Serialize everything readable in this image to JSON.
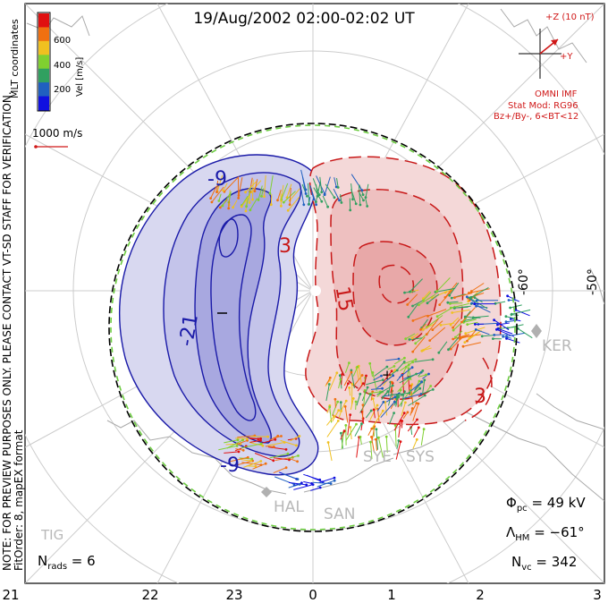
{
  "title": "19/Aug/2002 02:00-02:02 UT",
  "coord_label": "MLT coordinates",
  "colorbar": {
    "label": "Vel [m/s]",
    "ticks": [
      "600",
      "400",
      "200"
    ],
    "colors": [
      "#e01010",
      "#f07010",
      "#f0c020",
      "#80d030",
      "#30a060",
      "#2060c0",
      "#1010e0"
    ]
  },
  "ref_vector": "1000 m/s",
  "note": {
    "line1": "NOTE: FOR PREVIEW PURPOSES ONLY. PLEASE CONTACT VT-SD STAFF FOR VERIFICATION.",
    "line2": "FitOrder: 8, mapEX format"
  },
  "imf": {
    "z_label": "+Z (10 nT)",
    "y_label": "+Y",
    "source": "OMNI IMF",
    "model": "Stat Mod: RG96",
    "condition": "Bz+/By-, 6<BT<12"
  },
  "lat_labels": [
    "-60°",
    "-50°"
  ],
  "contour_labels": [
    "-9",
    "-21",
    "3",
    "15",
    "-9",
    "3"
  ],
  "stations": [
    "KER",
    "SYE",
    "SYS",
    "HAL",
    "SAN",
    "TIG"
  ],
  "stats": {
    "n_rads": "N_rads = 6",
    "n_rads_main": "N",
    "n_rads_sub": "rads",
    "n_rads_value": " = 6",
    "phi_main": "Φ",
    "phi_sub": "pc",
    "phi_value": " = 49 kV",
    "lambda_main": "Λ",
    "lambda_sub": "HM",
    "lambda_value": " = −61°",
    "nvc_main": "N",
    "nvc_sub": "vc",
    "nvc_value": " = 342"
  },
  "mlt_axis": [
    "21",
    "22",
    "23",
    "0",
    "1",
    "2",
    "3"
  ],
  "colors": {
    "negative_cell": "#1a1aa8",
    "positive_cell": "#c81818",
    "boundary": "#6ccc40"
  }
}
